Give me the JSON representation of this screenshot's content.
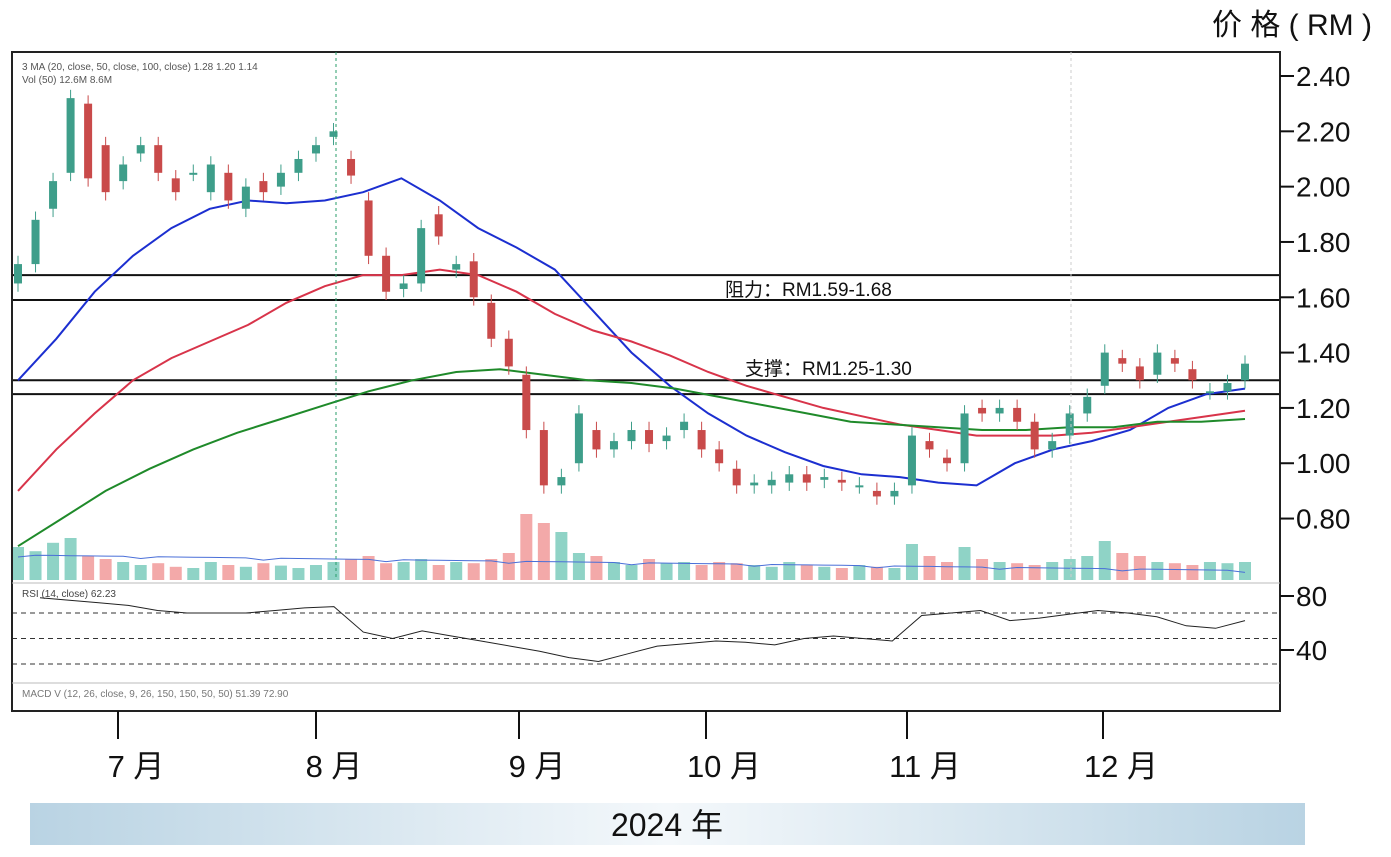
{
  "header": {
    "price_unit_label": "价 格 ( RM )",
    "legend_line_1": "",
    "legend_line_2": "3 MA (20, close, 50, close, 100, close) 1.28 1.20 1.14",
    "legend_line_3": "Vol (50) 12.6M 8.6M",
    "rsi_legend": "RSI (14, close) 62.23",
    "macd_legend": "MACD V (12, 26, close, 9, 26, 150, 150, 50, 50) 51.39 72.90"
  },
  "annotations": {
    "resistance_label": "阻力：RM1.59-1.68",
    "support_label": "支撑：RM1.25-1.30"
  },
  "footer": {
    "year_label": "2024 年"
  },
  "colors": {
    "up": "#3e9e8a",
    "down": "#c94a4a",
    "vol_up": "#8fd3c6",
    "vol_down": "#f3a9a9",
    "ma20": "#1c2fd0",
    "ma50": "#d8344a",
    "ma100": "#1f8a2a",
    "footer_band": "#b9d3e3",
    "frame": "#222222"
  },
  "chart_data": {
    "type": "candlestick",
    "title": "",
    "xlabel": "2024 年",
    "ylabel": "价 格 ( RM )",
    "x_ticks": [
      "7 月",
      "8 月",
      "9 月",
      "10 月",
      "11 月",
      "12 月"
    ],
    "y_ticks": [
      "2.40",
      "2.20",
      "2.00",
      "1.80",
      "1.60",
      "1.40",
      "1.20",
      "1.00",
      "0.80"
    ],
    "rsi_ticks": [
      "80",
      "40"
    ],
    "ylim": [
      0.6,
      2.5
    ],
    "series": [
      {
        "name": "MA 20",
        "color": "#1c2fd0",
        "values": [
          1.3,
          1.45,
          1.62,
          1.75,
          1.85,
          1.92,
          1.95,
          1.94,
          1.95,
          1.98,
          2.03,
          1.95,
          1.85,
          1.78,
          1.7,
          1.55,
          1.4,
          1.28,
          1.18,
          1.1,
          1.04,
          0.99,
          0.96,
          0.95,
          0.93,
          0.92,
          1.0,
          1.05,
          1.08,
          1.12,
          1.2,
          1.25,
          1.27
        ]
      },
      {
        "name": "MA 50",
        "color": "#d8344a",
        "values": [
          0.9,
          1.05,
          1.18,
          1.3,
          1.38,
          1.44,
          1.5,
          1.58,
          1.64,
          1.68,
          1.68,
          1.7,
          1.68,
          1.62,
          1.54,
          1.48,
          1.44,
          1.39,
          1.33,
          1.28,
          1.24,
          1.2,
          1.17,
          1.14,
          1.12,
          1.1,
          1.1,
          1.1,
          1.11,
          1.13,
          1.15,
          1.17,
          1.19
        ]
      },
      {
        "name": "MA 100",
        "color": "#1f8a2a",
        "values": [
          0.7,
          0.8,
          0.9,
          0.98,
          1.05,
          1.11,
          1.16,
          1.21,
          1.26,
          1.3,
          1.33,
          1.34,
          1.32,
          1.3,
          1.29,
          1.27,
          1.24,
          1.21,
          1.18,
          1.15,
          1.14,
          1.13,
          1.12,
          1.12,
          1.13,
          1.13,
          1.15,
          1.15,
          1.16
        ]
      }
    ],
    "candles": [
      [
        1.65,
        1.72
      ],
      [
        1.72,
        1.88
      ],
      [
        1.92,
        2.02
      ],
      [
        2.05,
        2.32
      ],
      [
        2.3,
        2.03
      ],
      [
        2.15,
        1.98
      ],
      [
        2.02,
        2.08
      ],
      [
        2.12,
        2.15
      ],
      [
        2.15,
        2.05
      ],
      [
        2.03,
        1.98
      ],
      [
        2.05,
        2.05
      ],
      [
        1.98,
        2.08
      ],
      [
        2.05,
        1.95
      ],
      [
        1.92,
        2.0
      ],
      [
        2.02,
        1.98
      ],
      [
        2.0,
        2.05
      ],
      [
        2.05,
        2.1
      ],
      [
        2.12,
        2.15
      ],
      [
        2.18,
        2.2
      ],
      [
        2.1,
        2.04
      ],
      [
        1.95,
        1.75
      ],
      [
        1.75,
        1.62
      ],
      [
        1.63,
        1.65
      ],
      [
        1.65,
        1.85
      ],
      [
        1.9,
        1.82
      ],
      [
        1.7,
        1.72
      ],
      [
        1.73,
        1.6
      ],
      [
        1.58,
        1.45
      ],
      [
        1.45,
        1.35
      ],
      [
        1.32,
        1.12
      ],
      [
        1.12,
        0.92
      ],
      [
        0.92,
        0.95
      ],
      [
        1.0,
        1.18
      ],
      [
        1.12,
        1.05
      ],
      [
        1.05,
        1.08
      ],
      [
        1.08,
        1.12
      ],
      [
        1.12,
        1.07
      ],
      [
        1.08,
        1.1
      ],
      [
        1.12,
        1.15
      ],
      [
        1.12,
        1.05
      ],
      [
        1.05,
        1.0
      ],
      [
        0.98,
        0.92
      ],
      [
        0.92,
        0.93
      ],
      [
        0.92,
        0.94
      ],
      [
        0.93,
        0.96
      ],
      [
        0.96,
        0.93
      ],
      [
        0.94,
        0.95
      ],
      [
        0.94,
        0.93
      ],
      [
        0.92,
        0.92
      ],
      [
        0.9,
        0.88
      ],
      [
        0.88,
        0.9
      ],
      [
        0.92,
        1.1
      ],
      [
        1.08,
        1.05
      ],
      [
        1.02,
        1.0
      ],
      [
        1.0,
        1.18
      ],
      [
        1.2,
        1.18
      ],
      [
        1.18,
        1.2
      ],
      [
        1.2,
        1.15
      ],
      [
        1.15,
        1.05
      ],
      [
        1.05,
        1.08
      ],
      [
        1.1,
        1.18
      ],
      [
        1.18,
        1.24
      ],
      [
        1.28,
        1.4
      ],
      [
        1.38,
        1.36
      ],
      [
        1.35,
        1.3
      ],
      [
        1.32,
        1.4
      ],
      [
        1.38,
        1.36
      ],
      [
        1.34,
        1.3
      ],
      [
        1.26,
        1.26
      ],
      [
        1.26,
        1.29
      ],
      [
        1.3,
        1.36
      ]
    ],
    "volume": [
      0.55,
      0.48,
      0.62,
      0.7,
      0.4,
      0.35,
      0.3,
      0.25,
      0.28,
      0.22,
      0.2,
      0.3,
      0.25,
      0.22,
      0.28,
      0.24,
      0.2,
      0.25,
      0.3,
      0.35,
      0.4,
      0.28,
      0.3,
      0.35,
      0.25,
      0.3,
      0.28,
      0.35,
      0.45,
      1.1,
      0.95,
      0.8,
      0.45,
      0.4,
      0.3,
      0.25,
      0.35,
      0.28,
      0.3,
      0.25,
      0.3,
      0.28,
      0.25,
      0.22,
      0.3,
      0.25,
      0.22,
      0.2,
      0.25,
      0.22,
      0.2,
      0.6,
      0.4,
      0.3,
      0.55,
      0.35,
      0.3,
      0.28,
      0.25,
      0.3,
      0.35,
      0.4,
      0.65,
      0.45,
      0.4,
      0.3,
      0.28,
      0.25,
      0.3,
      0.28,
      0.3
    ],
    "rsi": [
      82,
      80,
      78,
      76,
      72,
      70,
      70,
      70,
      72,
      74,
      75,
      55,
      50,
      56,
      52,
      48,
      44,
      40,
      35,
      32,
      38,
      44,
      46,
      48,
      47,
      45,
      50,
      52,
      50,
      48,
      68,
      70,
      72,
      64,
      66,
      69,
      72,
      70,
      67,
      60,
      58,
      64
    ],
    "resistance_zone": [
      1.59,
      1.68
    ],
    "support_zone": [
      1.25,
      1.3
    ],
    "rsi_levels": [
      70,
      50,
      30
    ],
    "grid": false,
    "legend": "top-left"
  }
}
